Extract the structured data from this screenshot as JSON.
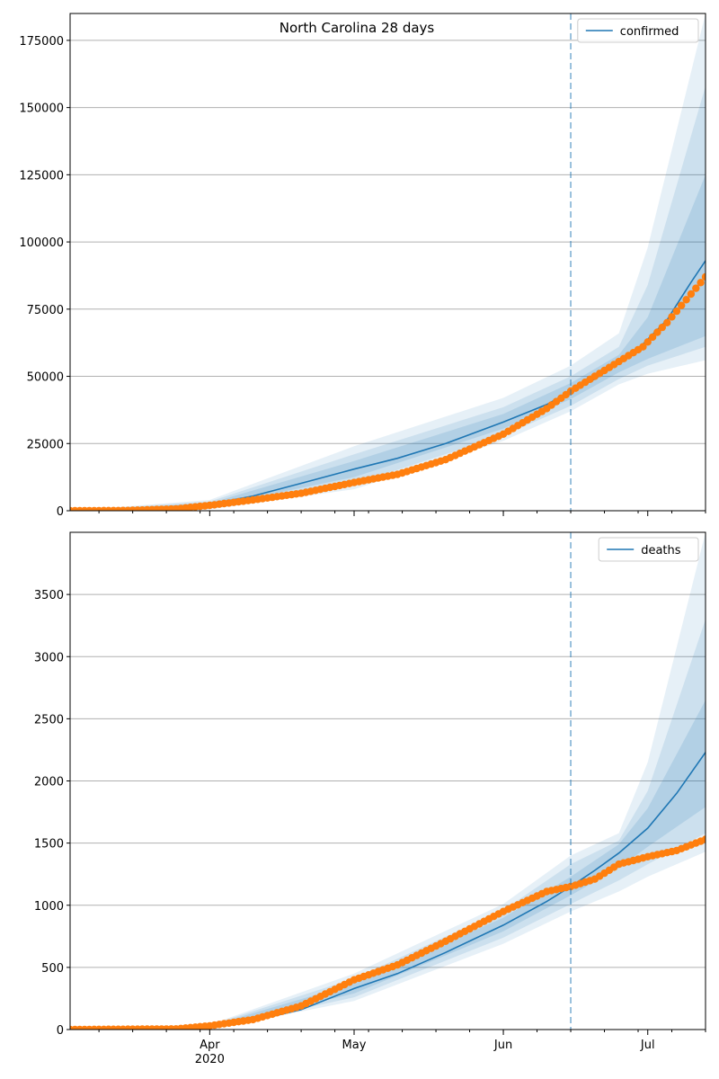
{
  "figure": {
    "title": "North Carolina 28 days"
  },
  "colors": {
    "model_line": "#1f77b4",
    "observed_points": "#ff7f0e",
    "band": "#1f77b4",
    "vline": "#1f77b4",
    "grid": "#b0b0b0"
  },
  "chart_data": [
    {
      "type": "line",
      "title": "North Carolina 28 days",
      "xlabel": "",
      "ylabel": "",
      "x_axis": {
        "type": "date",
        "range": [
          "2020-03-03",
          "2020-07-13"
        ],
        "major_ticks": [
          {
            "date": "2020-04-01",
            "label": "Apr",
            "sublabel": ""
          },
          {
            "date": "2020-05-01",
            "label": "May",
            "sublabel": ""
          },
          {
            "date": "2020-06-01",
            "label": "Jun",
            "sublabel": ""
          },
          {
            "date": "2020-07-01",
            "label": "Jul",
            "sublabel": ""
          }
        ],
        "show_labels": false
      },
      "ylim": [
        0,
        185000
      ],
      "yticks": [
        0,
        25000,
        50000,
        75000,
        100000,
        125000,
        150000,
        175000
      ],
      "grid": "horizontal",
      "legend": {
        "position": "top-right",
        "entries": [
          "confirmed"
        ]
      },
      "forecast_start": "2020-06-15",
      "series": [
        {
          "name": "confirmed",
          "kind": "model",
          "points": [
            [
              "2020-03-03",
              0
            ],
            [
              "2020-03-31",
              2000
            ],
            [
              "2020-04-10",
              5500
            ],
            [
              "2020-04-20",
              10200
            ],
            [
              "2020-05-01",
              15500
            ],
            [
              "2020-05-10",
              19500
            ],
            [
              "2020-05-20",
              25000
            ],
            [
              "2020-06-01",
              33000
            ],
            [
              "2020-06-10",
              39500
            ],
            [
              "2020-06-15",
              44500
            ],
            [
              "2020-06-20",
              49000
            ],
            [
              "2020-06-25",
              55000
            ],
            [
              "2020-06-30",
              62000
            ],
            [
              "2020-07-05",
              71000
            ],
            [
              "2020-07-10",
              85000
            ],
            [
              "2020-07-13",
              93000
            ]
          ]
        },
        {
          "kind": "observed",
          "points": [
            [
              "2020-03-03",
              0
            ],
            [
              "2020-03-15",
              100
            ],
            [
              "2020-03-25",
              700
            ],
            [
              "2020-04-01",
              2000
            ],
            [
              "2020-04-10",
              4000
            ],
            [
              "2020-04-20",
              6500
            ],
            [
              "2020-05-01",
              10500
            ],
            [
              "2020-05-10",
              13500
            ],
            [
              "2020-05-20",
              19000
            ],
            [
              "2020-06-01",
              28500
            ],
            [
              "2020-06-10",
              38000
            ],
            [
              "2020-06-15",
              44500
            ],
            [
              "2020-06-20",
              50000
            ],
            [
              "2020-06-30",
              61000
            ],
            [
              "2020-07-05",
              70000
            ],
            [
              "2020-07-13",
              87000
            ]
          ]
        }
      ],
      "bands": [
        {
          "level": "outer",
          "points": [
            [
              "2020-03-03",
              0,
              0
            ],
            [
              "2020-04-01",
              500,
              4000
            ],
            [
              "2020-05-01",
              8000,
              24000
            ],
            [
              "2020-06-01",
              26000,
              42000
            ],
            [
              "2020-06-15",
              37000,
              54000
            ],
            [
              "2020-06-25",
              47000,
              66000
            ],
            [
              "2020-07-01",
              51000,
              98000
            ],
            [
              "2020-07-13",
              56000,
              185000
            ]
          ]
        },
        {
          "level": "middle",
          "points": [
            [
              "2020-03-03",
              0,
              0
            ],
            [
              "2020-04-01",
              1000,
              3400
            ],
            [
              "2020-05-01",
              10000,
              21000
            ],
            [
              "2020-06-01",
              28000,
              38500
            ],
            [
              "2020-06-15",
              39000,
              50000
            ],
            [
              "2020-06-25",
              49000,
              61000
            ],
            [
              "2020-07-01",
              54000,
              84000
            ],
            [
              "2020-07-13",
              61000,
              158000
            ]
          ]
        },
        {
          "level": "inner",
          "points": [
            [
              "2020-03-03",
              0,
              0
            ],
            [
              "2020-04-01",
              1500,
              2800
            ],
            [
              "2020-05-01",
              12500,
              18500
            ],
            [
              "2020-06-01",
              30500,
              36000
            ],
            [
              "2020-06-15",
              41500,
              47500
            ],
            [
              "2020-06-25",
              51500,
              58000
            ],
            [
              "2020-07-01",
              56500,
              72000
            ],
            [
              "2020-07-13",
              65000,
              125000
            ]
          ]
        }
      ]
    },
    {
      "type": "line",
      "title": "",
      "xlabel": "",
      "ylabel": "",
      "x_axis": {
        "type": "date",
        "range": [
          "2020-03-03",
          "2020-07-13"
        ],
        "major_ticks": [
          {
            "date": "2020-04-01",
            "label": "Apr",
            "sublabel": "2020"
          },
          {
            "date": "2020-05-01",
            "label": "May",
            "sublabel": ""
          },
          {
            "date": "2020-06-01",
            "label": "Jun",
            "sublabel": ""
          },
          {
            "date": "2020-07-01",
            "label": "Jul",
            "sublabel": ""
          }
        ],
        "show_labels": true
      },
      "ylim": [
        0,
        4000
      ],
      "yticks": [
        0,
        500,
        1000,
        1500,
        2000,
        2500,
        3000,
        3500
      ],
      "grid": "horizontal",
      "legend": {
        "position": "top-right",
        "entries": [
          "deaths"
        ]
      },
      "forecast_start": "2020-06-15",
      "series": [
        {
          "name": "deaths",
          "kind": "model",
          "points": [
            [
              "2020-03-03",
              0
            ],
            [
              "2020-03-25",
              5
            ],
            [
              "2020-04-01",
              20
            ],
            [
              "2020-04-10",
              70
            ],
            [
              "2020-04-20",
              160
            ],
            [
              "2020-05-01",
              330
            ],
            [
              "2020-05-10",
              450
            ],
            [
              "2020-05-20",
              620
            ],
            [
              "2020-06-01",
              840
            ],
            [
              "2020-06-10",
              1030
            ],
            [
              "2020-06-15",
              1150
            ],
            [
              "2020-06-20",
              1280
            ],
            [
              "2020-06-25",
              1420
            ],
            [
              "2020-07-01",
              1620
            ],
            [
              "2020-07-07",
              1900
            ],
            [
              "2020-07-13",
              2230
            ]
          ]
        },
        {
          "kind": "observed",
          "points": [
            [
              "2020-03-03",
              0
            ],
            [
              "2020-03-25",
              5
            ],
            [
              "2020-04-01",
              30
            ],
            [
              "2020-04-10",
              80
            ],
            [
              "2020-04-20",
              190
            ],
            [
              "2020-05-01",
              400
            ],
            [
              "2020-05-10",
              520
            ],
            [
              "2020-05-20",
              710
            ],
            [
              "2020-06-01",
              950
            ],
            [
              "2020-06-10",
              1110
            ],
            [
              "2020-06-15",
              1150
            ],
            [
              "2020-06-20",
              1210
            ],
            [
              "2020-06-25",
              1330
            ],
            [
              "2020-07-01",
              1390
            ],
            [
              "2020-07-07",
              1440
            ],
            [
              "2020-07-13",
              1530
            ]
          ]
        }
      ],
      "bands": [
        {
          "level": "outer",
          "points": [
            [
              "2020-03-03",
              0,
              0
            ],
            [
              "2020-04-01",
              0,
              40
            ],
            [
              "2020-05-01",
              230,
              450
            ],
            [
              "2020-06-01",
              690,
              1010
            ],
            [
              "2020-06-15",
              950,
              1400
            ],
            [
              "2020-06-25",
              1110,
              1580
            ],
            [
              "2020-07-01",
              1230,
              2150
            ],
            [
              "2020-07-13",
              1430,
              4000
            ]
          ]
        },
        {
          "level": "middle",
          "points": [
            [
              "2020-03-03",
              0,
              0
            ],
            [
              "2020-04-01",
              5,
              35
            ],
            [
              "2020-05-01",
              260,
              410
            ],
            [
              "2020-06-01",
              740,
              960
            ],
            [
              "2020-06-15",
              1010,
              1330
            ],
            [
              "2020-06-25",
              1200,
              1520
            ],
            [
              "2020-07-01",
              1330,
              1920
            ],
            [
              "2020-07-13",
              1580,
              3300
            ]
          ]
        },
        {
          "level": "inner",
          "points": [
            [
              "2020-03-03",
              0,
              0
            ],
            [
              "2020-04-01",
              10,
              30
            ],
            [
              "2020-05-01",
              290,
              370
            ],
            [
              "2020-06-01",
              790,
              900
            ],
            [
              "2020-06-15",
              1080,
              1230
            ],
            [
              "2020-06-25",
              1300,
              1490
            ],
            [
              "2020-07-01",
              1470,
              1780
            ],
            [
              "2020-07-13",
              1790,
              2650
            ]
          ]
        }
      ]
    }
  ]
}
